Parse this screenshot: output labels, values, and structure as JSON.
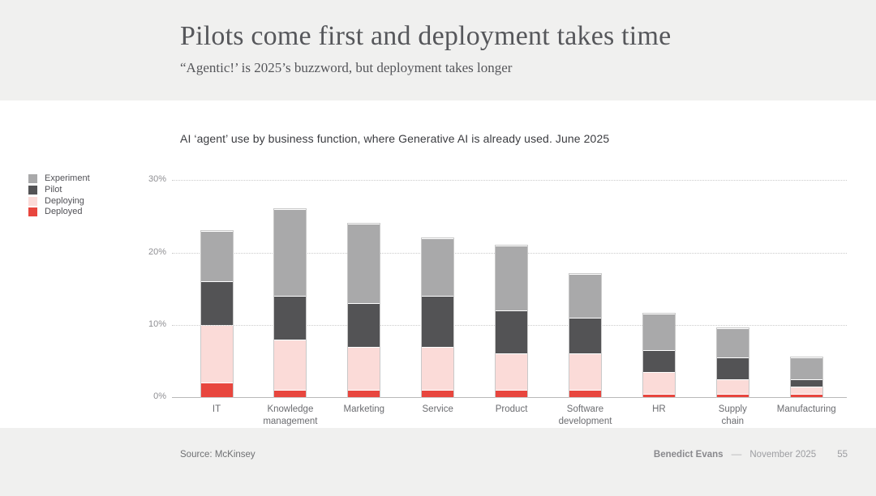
{
  "slide": {
    "title": "Pilots come first and deployment takes time",
    "subtitle": "“Agentic!’ is 2025’s buzzword, but deployment takes longer"
  },
  "chart_data": {
    "type": "bar",
    "variant": "stacked",
    "title": "AI ‘agent’ use by business function, where Generative AI is already used. June 2025",
    "categories": [
      "IT",
      "Knowledge management",
      "Marketing",
      "Service",
      "Product",
      "Software development",
      "HR",
      "Supply chain",
      "Manufacturing"
    ],
    "series": [
      {
        "name": "Deployed",
        "color": "#e8463e",
        "values": [
          2,
          1,
          1,
          1,
          1,
          1,
          0.5,
          0.5,
          0.5
        ]
      },
      {
        "name": "Deploying",
        "color": "#fbdbd8",
        "values": [
          8,
          7,
          6,
          6,
          5,
          5,
          3,
          2,
          1
        ]
      },
      {
        "name": "Pilot",
        "color": "#535355",
        "values": [
          6,
          6,
          6,
          7,
          6,
          5,
          3,
          3,
          1
        ]
      },
      {
        "name": "Experiment",
        "color": "#a9a9aa",
        "values": [
          7,
          12,
          11,
          8,
          9,
          6,
          5,
          4,
          3
        ]
      }
    ],
    "totals": [
      23,
      26,
      24,
      22,
      21,
      17,
      11.5,
      9.5,
      5.5
    ],
    "stack_order_bottom_to_top": [
      "Deployed",
      "Deploying",
      "Pilot",
      "Experiment"
    ],
    "legend_order_top_to_bottom": [
      "Experiment",
      "Pilot",
      "Deploying",
      "Deployed"
    ],
    "ylim": [
      0,
      30
    ],
    "yticks": [
      {
        "value": 0,
        "label": "0%"
      },
      {
        "value": 10,
        "label": "10%"
      },
      {
        "value": 20,
        "label": "20%"
      },
      {
        "value": 30,
        "label": "30%"
      }
    ],
    "grid": "horizontal-dotted",
    "legend_position": "left",
    "xlabel": "",
    "ylabel": ""
  },
  "footer": {
    "source": "Source: McKinsey",
    "author": "Benedict Evans",
    "separator": "––",
    "date": "November 2025",
    "page": "55"
  }
}
